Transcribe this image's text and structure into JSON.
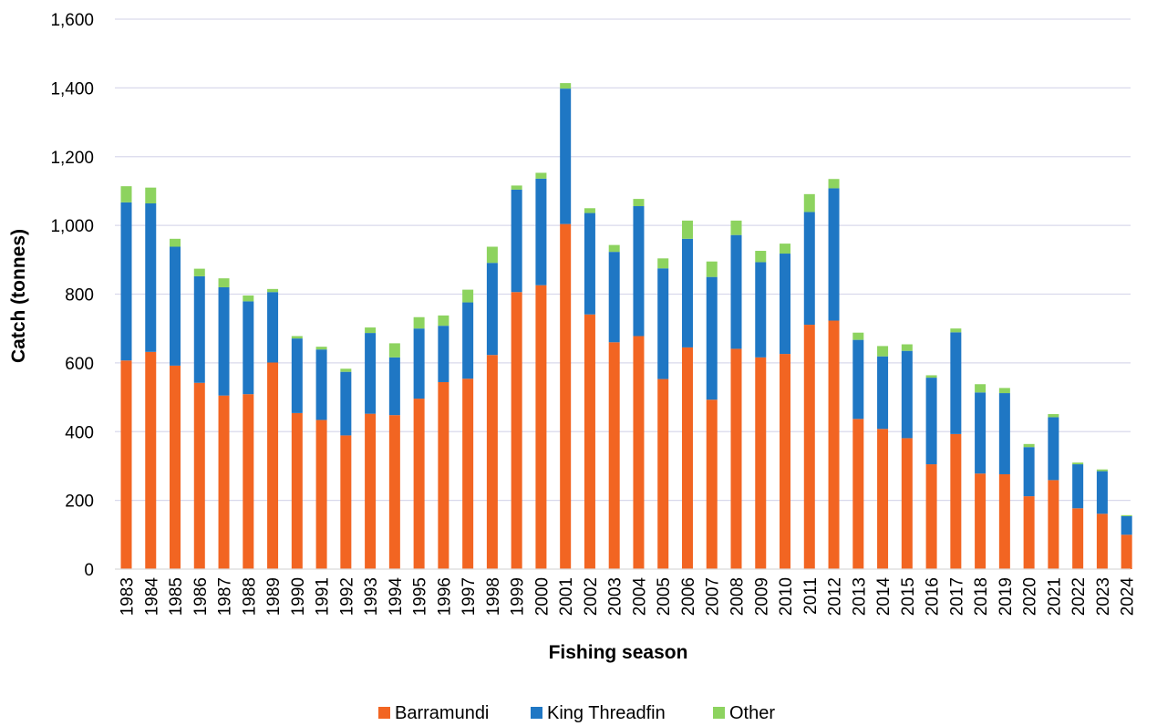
{
  "chart_data": {
    "type": "bar",
    "stacked": true,
    "title": "",
    "xlabel": "Fishing season",
    "ylabel": "Catch (tonnes)",
    "ylim": [
      0,
      1600
    ],
    "yticks": [
      0,
      200,
      400,
      600,
      800,
      1000,
      1200,
      1400,
      1600
    ],
    "ytick_labels": [
      "0",
      "200",
      "400",
      "600",
      "800",
      "1,000",
      "1,200",
      "1,400",
      "1,600"
    ],
    "grid": "horizontal",
    "legend_position": "bottom-center",
    "categories": [
      "1983",
      "1984",
      "1985",
      "1986",
      "1987",
      "1988",
      "1989",
      "1990",
      "1991",
      "1992",
      "1993",
      "1994",
      "1995",
      "1996",
      "1997",
      "1998",
      "1999",
      "2000",
      "2001",
      "2002",
      "2003",
      "2004",
      "2005",
      "2006",
      "2007",
      "2008",
      "2009",
      "2010",
      "2011",
      "2012",
      "2013",
      "2014",
      "2015",
      "2016",
      "2017",
      "2018",
      "2019",
      "2020",
      "2021",
      "2022",
      "2023",
      "2024"
    ],
    "series": [
      {
        "name": "Barramundi",
        "color": "#f26522",
        "values": [
          607,
          632,
          592,
          542,
          505,
          509,
          601,
          454,
          434,
          389,
          452,
          448,
          496,
          544,
          554,
          623,
          806,
          826,
          1004,
          741,
          660,
          678,
          553,
          645,
          493,
          641,
          616,
          626,
          711,
          723,
          437,
          408,
          381,
          305,
          393,
          278,
          276,
          212,
          259,
          177,
          161,
          100
        ]
      },
      {
        "name": "King Threadfin",
        "color": "#1f77c4",
        "values": [
          460,
          432,
          346,
          310,
          315,
          270,
          205,
          217,
          205,
          185,
          235,
          168,
          204,
          164,
          222,
          268,
          298,
          310,
          394,
          295,
          263,
          378,
          322,
          316,
          357,
          331,
          277,
          292,
          328,
          385,
          230,
          211,
          254,
          252,
          296,
          236,
          236,
          143,
          183,
          128,
          124,
          54
        ]
      },
      {
        "name": "Other",
        "color": "#8dd35f",
        "values": [
          47,
          46,
          23,
          22,
          26,
          17,
          9,
          7,
          8,
          9,
          16,
          41,
          33,
          30,
          37,
          47,
          12,
          17,
          16,
          14,
          20,
          21,
          29,
          53,
          45,
          42,
          33,
          29,
          52,
          27,
          21,
          30,
          19,
          7,
          11,
          24,
          15,
          9,
          9,
          5,
          5,
          3
        ]
      }
    ]
  }
}
